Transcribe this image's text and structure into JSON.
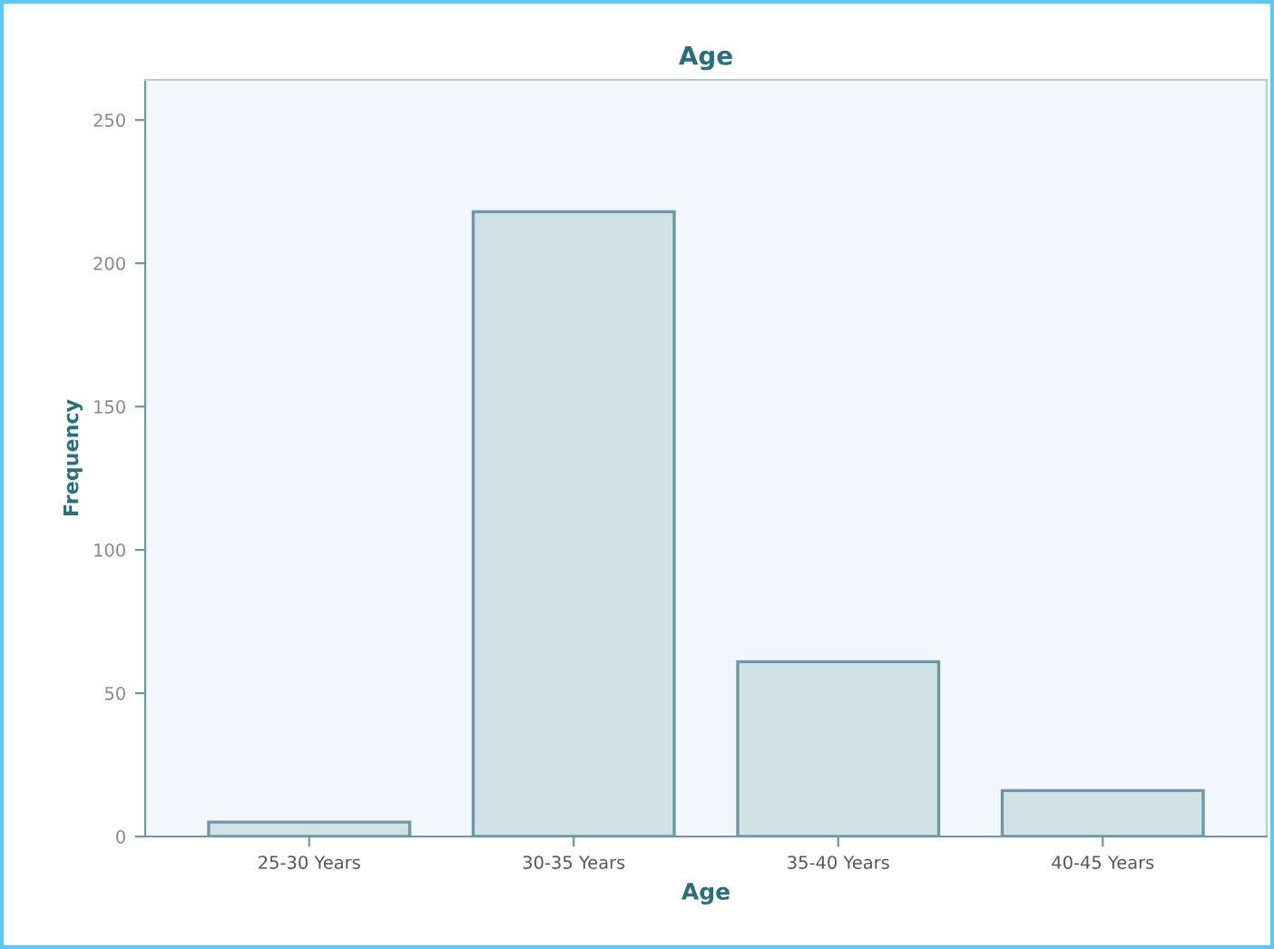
{
  "chart_data": {
    "type": "bar",
    "title": "Age",
    "xlabel": "Age",
    "ylabel": "Frequency",
    "categories": [
      "25-30 Years",
      "30-35 Years",
      "35-40 Years",
      "40-45 Years"
    ],
    "values": [
      5,
      218,
      61,
      16
    ],
    "color": "#d0e2e8",
    "ylim": [
      0,
      264
    ],
    "yticks": [
      0,
      50,
      100,
      150,
      200,
      250
    ],
    "grid": false,
    "legend": false
  }
}
